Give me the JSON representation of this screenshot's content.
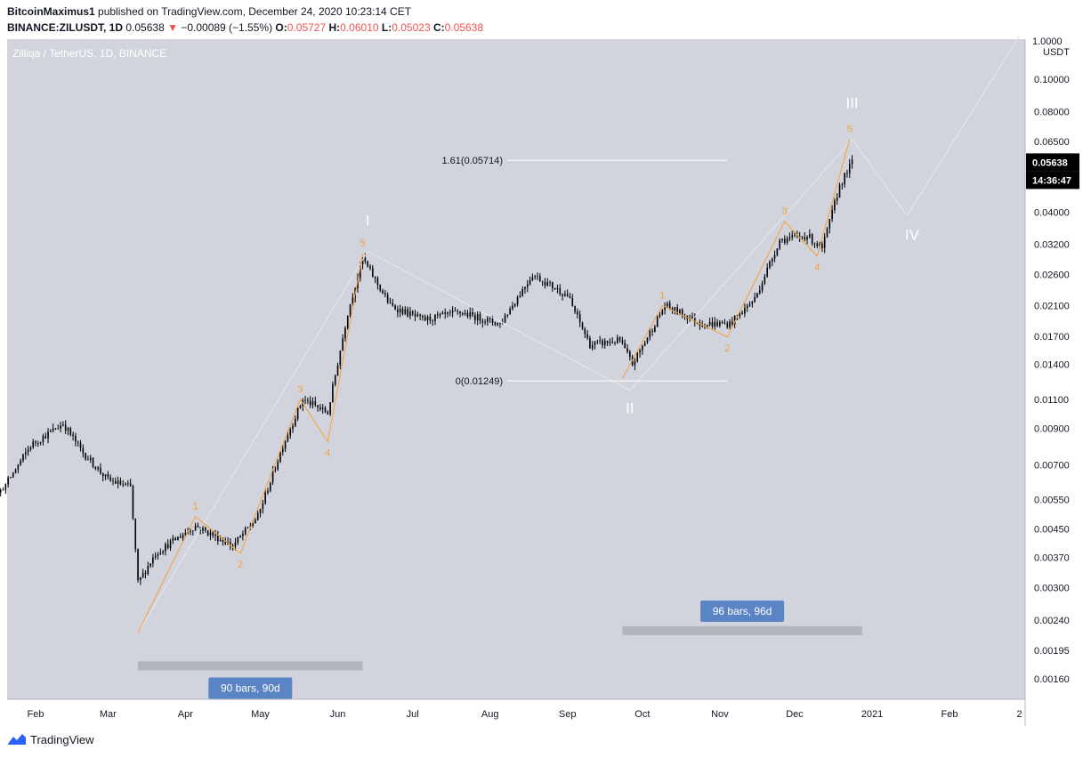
{
  "header": {
    "publisher_line": "BitcoinMaximus1 published on TradingView.com, December 24, 2020 10:23:14 CET",
    "publisher_name": "BitcoinMaximus1",
    "publisher_rest": " published on TradingView.com, December 24, 2020 10:23:14 CET",
    "symbol": "BINANCE:ZILUSDT, 1D",
    "last": "0.05638",
    "change_arrow": "▼",
    "change": "−0.00089 (−1.55%)",
    "o_label": "O:",
    "o": "0.05727",
    "h_label": "H:",
    "h": "0.06010",
    "l_label": "L:",
    "l": "0.05023",
    "c_label": "C:",
    "c": "0.05638"
  },
  "footer": {
    "brand": "TradingView"
  },
  "colors": {
    "background": "#d1d4dc",
    "candle": "#000000",
    "wave_orange": "#f7a13a",
    "wave_grey": "#e6e8ee",
    "fib_line": "#ffffff",
    "range_box": "#b2b5be",
    "range_label_bg": "#5b84c4",
    "price_label_bg": "#000000"
  },
  "chart_data": {
    "type": "candlestick",
    "title": "Zilliqa / TetherUS, 1D, BINANCE",
    "y_scale": "log",
    "y_unit": "USDT",
    "ylim": [
      0.0014,
      0.14
    ],
    "x_range": [
      "2021-01-10",
      "2021-02-27"
    ],
    "x_ticks": [
      {
        "date": "2020-02-01",
        "label": "Feb"
      },
      {
        "date": "2020-03-01",
        "label": "Mar"
      },
      {
        "date": "2020-04-01",
        "label": "Apr"
      },
      {
        "date": "2020-05-01",
        "label": "May"
      },
      {
        "date": "2020-06-01",
        "label": "Jun"
      },
      {
        "date": "2020-07-01",
        "label": "Jul"
      },
      {
        "date": "2020-08-01",
        "label": "Aug"
      },
      {
        "date": "2020-09-01",
        "label": "Sep"
      },
      {
        "date": "2020-10-01",
        "label": "Oct"
      },
      {
        "date": "2020-11-01",
        "label": "Nov"
      },
      {
        "date": "2020-12-01",
        "label": "Dec"
      },
      {
        "date": "2021-01-01",
        "label": "2021"
      },
      {
        "date": "2021-02-01",
        "label": "Feb"
      },
      {
        "date": "2021-03-01",
        "label": "2"
      }
    ],
    "y_ticks": [
      "0.10000",
      "0.08000",
      "0.06500",
      "0.04000",
      "0.03200",
      "0.02600",
      "0.02100",
      "0.01700",
      "0.01400",
      "0.01100",
      "0.00900",
      "0.00700",
      "0.00550",
      "0.00450",
      "0.00370",
      "0.00300",
      "0.00240",
      "0.00195",
      "0.00160"
    ],
    "y_top_label": "1.0000",
    "price_label": "0.05638",
    "countdown_label": "14:36:47",
    "price_anchors": [
      {
        "date": "2020-01-01",
        "price": 0.0052
      },
      {
        "date": "2020-01-10",
        "price": 0.005
      },
      {
        "date": "2020-01-20",
        "price": 0.0061
      },
      {
        "date": "2020-01-30",
        "price": 0.008
      },
      {
        "date": "2020-02-12",
        "price": 0.0093
      },
      {
        "date": "2020-02-20",
        "price": 0.0076
      },
      {
        "date": "2020-03-01",
        "price": 0.0063
      },
      {
        "date": "2020-03-10",
        "price": 0.006
      },
      {
        "date": "2020-03-13",
        "price": 0.0031
      },
      {
        "date": "2020-03-20",
        "price": 0.0038
      },
      {
        "date": "2020-04-05",
        "price": 0.0046
      },
      {
        "date": "2020-04-20",
        "price": 0.004
      },
      {
        "date": "2020-04-30",
        "price": 0.0049
      },
      {
        "date": "2020-05-10",
        "price": 0.008
      },
      {
        "date": "2020-05-18",
        "price": 0.011
      },
      {
        "date": "2020-05-28",
        "price": 0.01
      },
      {
        "date": "2020-06-05",
        "price": 0.02
      },
      {
        "date": "2020-06-11",
        "price": 0.029
      },
      {
        "date": "2020-06-22",
        "price": 0.021
      },
      {
        "date": "2020-07-05",
        "price": 0.019
      },
      {
        "date": "2020-07-20",
        "price": 0.02
      },
      {
        "date": "2020-08-05",
        "price": 0.0185
      },
      {
        "date": "2020-08-18",
        "price": 0.026
      },
      {
        "date": "2020-09-01",
        "price": 0.0225
      },
      {
        "date": "2020-09-10",
        "price": 0.016
      },
      {
        "date": "2020-09-22",
        "price": 0.0165
      },
      {
        "date": "2020-09-27",
        "price": 0.014
      },
      {
        "date": "2020-10-10",
        "price": 0.021
      },
      {
        "date": "2020-10-25",
        "price": 0.0185
      },
      {
        "date": "2020-11-05",
        "price": 0.0185
      },
      {
        "date": "2020-11-15",
        "price": 0.022
      },
      {
        "date": "2020-11-25",
        "price": 0.033
      },
      {
        "date": "2020-12-06",
        "price": 0.034
      },
      {
        "date": "2020-12-12",
        "price": 0.031
      },
      {
        "date": "2020-12-19",
        "price": 0.048
      },
      {
        "date": "2020-12-24",
        "price": 0.0564
      }
    ],
    "fib_levels": [
      {
        "label": "1.61(0.05714)",
        "price": 0.05714
      },
      {
        "label": "0(0.01249)",
        "price": 0.01249
      }
    ],
    "orange_waves": [
      {
        "points": [
          {
            "date": "2020-03-13",
            "price": 0.0022
          },
          {
            "date": "2020-04-05",
            "price": 0.0049
          },
          {
            "date": "2020-04-23",
            "price": 0.0038
          },
          {
            "date": "2020-05-17",
            "price": 0.011
          },
          {
            "date": "2020-05-28",
            "price": 0.0082
          },
          {
            "date": "2020-06-11",
            "price": 0.03
          }
        ],
        "labels": [
          "1",
          "2",
          "3",
          "4",
          "5"
        ]
      },
      {
        "points": [
          {
            "date": "2020-09-23",
            "price": 0.0127
          },
          {
            "date": "2020-10-09",
            "price": 0.021
          },
          {
            "date": "2020-11-04",
            "price": 0.0169
          },
          {
            "date": "2020-11-27",
            "price": 0.0375
          },
          {
            "date": "2020-12-10",
            "price": 0.0295
          },
          {
            "date": "2020-12-23",
            "price": 0.066
          }
        ],
        "labels": [
          "1",
          "2",
          "3",
          "4",
          "5"
        ]
      }
    ],
    "grey_waves": [
      {
        "date": "2020-03-13",
        "price": 0.0022
      },
      {
        "date": "2020-06-13",
        "price": 0.0305
      },
      {
        "date": "2020-09-26",
        "price": 0.0117
      },
      {
        "date": "2020-12-24",
        "price": 0.066
      },
      {
        "date": "2021-01-15",
        "price": 0.039
      },
      {
        "date": "2021-03-01",
        "price": 0.135
      }
    ],
    "wave_labels": [
      {
        "label": "I",
        "date": "2020-06-13",
        "price": 0.0365
      },
      {
        "label": "II",
        "date": "2020-09-26",
        "price": 0.01
      },
      {
        "label": "III",
        "date": "2020-12-24",
        "price": 0.082
      },
      {
        "label": "IV",
        "date": "2021-01-17",
        "price": 0.033
      }
    ],
    "ranges": [
      {
        "label": "90 bars, 90d",
        "from": "2020-03-13",
        "to": "2020-06-11",
        "price": 0.00175,
        "label_price": 0.0015
      },
      {
        "label": "96 bars, 96d",
        "from": "2020-09-23",
        "to": "2020-12-28",
        "price": 0.00223,
        "label_price": 0.00255
      }
    ]
  }
}
